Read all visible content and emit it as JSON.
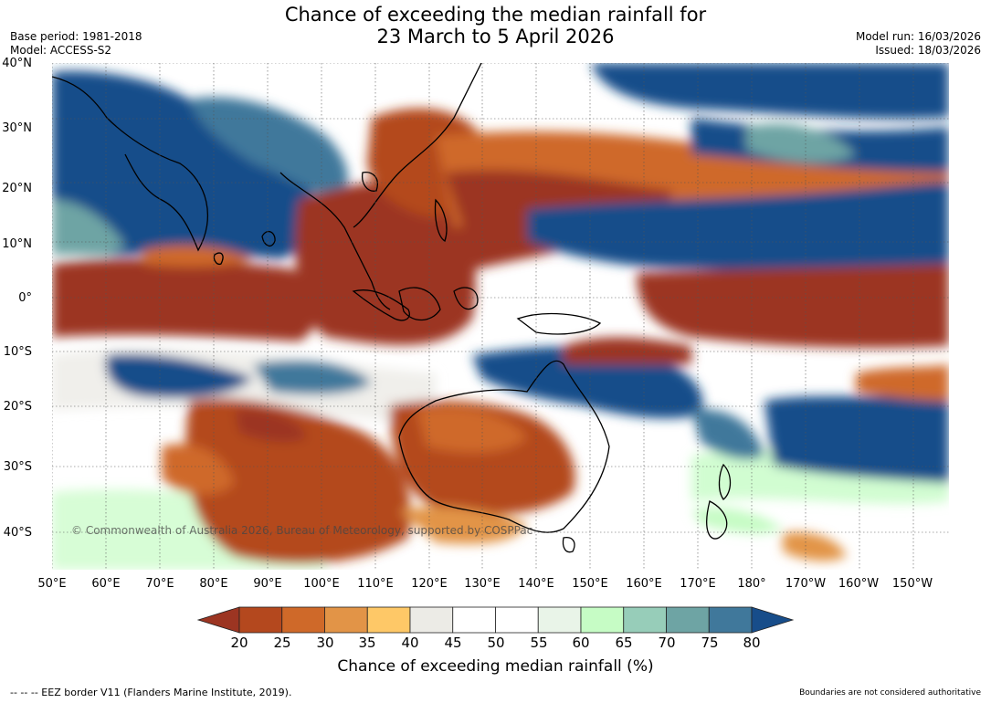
{
  "title": {
    "line1": "Chance of exceeding the median rainfall for",
    "line2": "23 March to 5 April 2026"
  },
  "meta_left": {
    "base_period": "Base period: 1981-2018",
    "model": "Model: ACCESS-S2"
  },
  "meta_right": {
    "model_run": "Model run: 16/03/2026",
    "issued": "Issued: 18/03/2026"
  },
  "lat_labels": [
    "40°N",
    "30°N",
    "20°N",
    "10°N",
    "0°",
    "10°S",
    "20°S",
    "30°S",
    "40°S"
  ],
  "lon_labels": [
    "50°E",
    "60°E",
    "70°E",
    "80°E",
    "90°E",
    "100°E",
    "110°E",
    "120°E",
    "130°E",
    "140°E",
    "150°E",
    "160°E",
    "170°E",
    "180°",
    "170°W",
    "160°W",
    "150°W"
  ],
  "copyright": "© Commonwealth of Australia 2026, Bureau of Meteorology, supported by COSPPac",
  "colorbar": {
    "ticks": [
      "20",
      "25",
      "30",
      "35",
      "40",
      "45",
      "50",
      "55",
      "60",
      "65",
      "70",
      "75",
      "80"
    ],
    "colors": [
      "#9c3522",
      "#b4481e",
      "#cf6929",
      "#e29447",
      "#fec867",
      "#ecebe6",
      "#ffffff",
      "#ffffff",
      "#e9f4e8",
      "#c6fcc5",
      "#97cdb9",
      "#6ea4a4",
      "#40789b",
      "#174d8a"
    ],
    "title": "Chance of exceeding median rainfall (%)"
  },
  "footer": {
    "eez": "--  --  -- EEZ border V11 (Flanders Marine Institute, 2019).",
    "disclaimer": "Boundaries are not considered authoritative"
  }
}
